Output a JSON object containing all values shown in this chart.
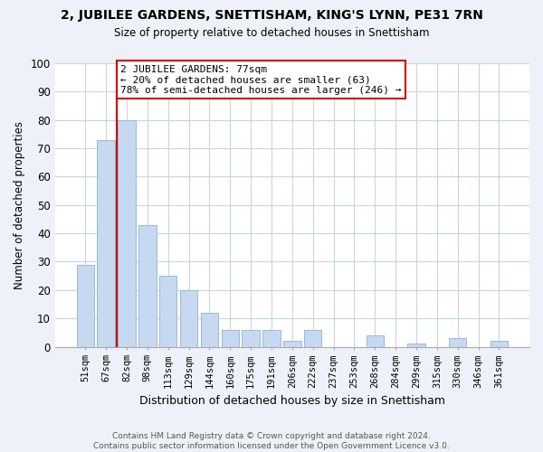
{
  "title": "2, JUBILEE GARDENS, SNETTISHAM, KING'S LYNN, PE31 7RN",
  "subtitle": "Size of property relative to detached houses in Snettisham",
  "xlabel": "Distribution of detached houses by size in Snettisham",
  "ylabel": "Number of detached properties",
  "bar_labels": [
    "51sqm",
    "67sqm",
    "82sqm",
    "98sqm",
    "113sqm",
    "129sqm",
    "144sqm",
    "160sqm",
    "175sqm",
    "191sqm",
    "206sqm",
    "222sqm",
    "237sqm",
    "253sqm",
    "268sqm",
    "284sqm",
    "299sqm",
    "315sqm",
    "330sqm",
    "346sqm",
    "361sqm"
  ],
  "bar_values": [
    29,
    73,
    80,
    43,
    25,
    20,
    12,
    6,
    6,
    6,
    2,
    6,
    0,
    0,
    4,
    0,
    1,
    0,
    3,
    0,
    2
  ],
  "bar_color": "#c6d9f0",
  "marker_line_color": "#cc0000",
  "annotation_line1": "2 JUBILEE GARDENS: 77sqm",
  "annotation_line2": "← 20% of detached houses are smaller (63)",
  "annotation_line3": "78% of semi-detached houses are larger (246) →",
  "annotation_box_color": "#ffffff",
  "annotation_box_edge": "#cc0000",
  "ylim": [
    0,
    100
  ],
  "yticks": [
    0,
    10,
    20,
    30,
    40,
    50,
    60,
    70,
    80,
    90,
    100
  ],
  "footer": "Contains HM Land Registry data © Crown copyright and database right 2024.\nContains public sector information licensed under the Open Government Licence v3.0.",
  "bg_color": "#eef2f8",
  "plot_bg_color": "#ffffff",
  "grid_color": "#c8d4e8"
}
